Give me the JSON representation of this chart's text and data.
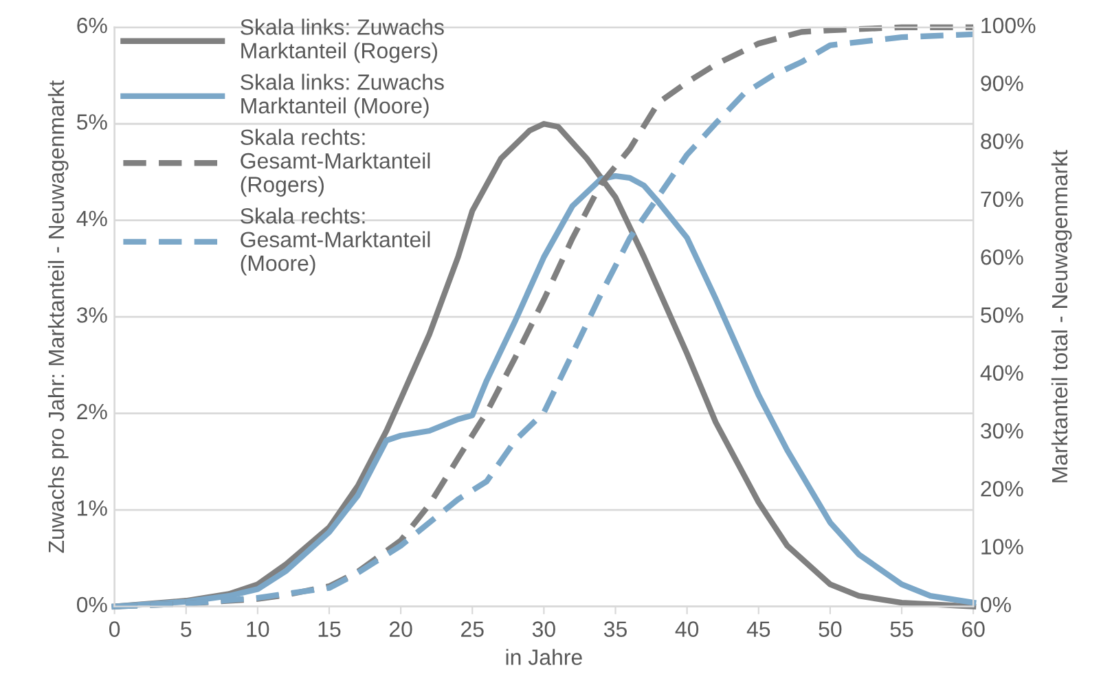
{
  "chart_data": {
    "type": "line",
    "xlabel": "in Jahre",
    "ylabel": "Zuwachs pro Jahr: Marktanteil - Neuwagenmarkt",
    "y2label": "Marktanteil total - Neuwagenmarkt",
    "xlim": [
      0,
      60
    ],
    "xticks": [
      0,
      5,
      10,
      15,
      20,
      25,
      30,
      35,
      40,
      45,
      50,
      55,
      60
    ],
    "ylim": [
      0,
      6
    ],
    "yticks": [
      {
        "value": 0,
        "label": "0%"
      },
      {
        "value": 1,
        "label": "1%"
      },
      {
        "value": 2,
        "label": "2%"
      },
      {
        "value": 3,
        "label": "3%"
      },
      {
        "value": 4,
        "label": "4%"
      },
      {
        "value": 5,
        "label": "5%"
      },
      {
        "value": 6,
        "label": "6%"
      }
    ],
    "y2lim": [
      0,
      100
    ],
    "y2ticks": [
      {
        "value": 0,
        "label": "0%"
      },
      {
        "value": 10,
        "label": "10%"
      },
      {
        "value": 20,
        "label": "20%"
      },
      {
        "value": 30,
        "label": "30%"
      },
      {
        "value": 40,
        "label": "40%"
      },
      {
        "value": 50,
        "label": "50%"
      },
      {
        "value": 60,
        "label": "60%"
      },
      {
        "value": 70,
        "label": "70%"
      },
      {
        "value": 80,
        "label": "80%"
      },
      {
        "value": 90,
        "label": "90%"
      },
      {
        "value": 100,
        "label": "100%"
      }
    ],
    "grid": "y",
    "legend": "top left",
    "series": [
      {
        "name": "Skala links: Zuwachs Marktanteil (Rogers)",
        "color": "#808080",
        "line_style": "solid",
        "x": [
          0,
          5,
          8,
          10,
          12,
          15,
          17,
          19,
          20,
          22,
          24,
          25,
          27,
          29,
          30,
          31,
          33,
          35,
          37,
          40,
          42,
          45,
          47,
          50,
          52,
          55,
          60
        ],
        "values": [
          0,
          0.06,
          0.13,
          0.23,
          0.44,
          0.82,
          1.25,
          1.82,
          2.15,
          2.82,
          3.62,
          4.1,
          4.64,
          4.93,
          5.0,
          4.97,
          4.64,
          4.24,
          3.62,
          2.62,
          1.91,
          1.08,
          0.63,
          0.23,
          0.11,
          0.04,
          0
        ]
      },
      {
        "name": "Skala links: Zuwachs Marktanteil (Moore)",
        "color": "#7ba7c8",
        "line_style": "solid",
        "x": [
          0,
          5,
          8,
          10,
          12,
          15,
          17,
          19,
          20,
          22,
          24,
          25,
          26,
          28,
          30,
          32,
          34,
          35,
          36,
          37,
          38,
          40,
          42,
          45,
          47,
          50,
          52,
          55,
          57,
          60
        ],
        "values": [
          0,
          0.05,
          0.11,
          0.18,
          0.37,
          0.77,
          1.15,
          1.72,
          1.77,
          1.82,
          1.94,
          1.98,
          2.34,
          2.96,
          3.62,
          4.15,
          4.43,
          4.46,
          4.44,
          4.36,
          4.19,
          3.82,
          3.19,
          2.19,
          1.62,
          0.87,
          0.54,
          0.23,
          0.11,
          0.04
        ]
      },
      {
        "name": "Skala rechts: Gesamt-Marktanteil (Rogers)",
        "color": "#808080",
        "line_style": "dashed",
        "axis": "y2",
        "x": [
          0,
          5,
          10,
          12,
          15,
          17,
          20,
          22,
          24,
          26,
          28,
          30,
          32,
          34,
          36,
          38,
          40,
          42,
          45,
          48,
          50,
          55,
          60
        ],
        "values": [
          0,
          0.5,
          1.3,
          2,
          3.5,
          6,
          11.4,
          17.6,
          25.6,
          33.5,
          43,
          53,
          63.6,
          73,
          79,
          87,
          90.5,
          93.6,
          97.2,
          99.2,
          99.5,
          100,
          100
        ]
      },
      {
        "name": "Skala rechts: Gesamt-Marktanteil (Moore)",
        "color": "#7ba7c8",
        "line_style": "dashed",
        "axis": "y2",
        "x": [
          0,
          5,
          10,
          12,
          15,
          17,
          20,
          22,
          24,
          26,
          28,
          30,
          32,
          34,
          36,
          38,
          40,
          42,
          44,
          46,
          48,
          50,
          55,
          60
        ],
        "values": [
          0,
          0.5,
          1.5,
          2.2,
          3.2,
          5.8,
          10.5,
          14.5,
          18.5,
          21.6,
          28.7,
          33.5,
          43.7,
          54,
          63.6,
          70.8,
          78,
          83.4,
          88.6,
          91.7,
          94,
          96.9,
          98.3,
          98.8
        ]
      }
    ]
  }
}
